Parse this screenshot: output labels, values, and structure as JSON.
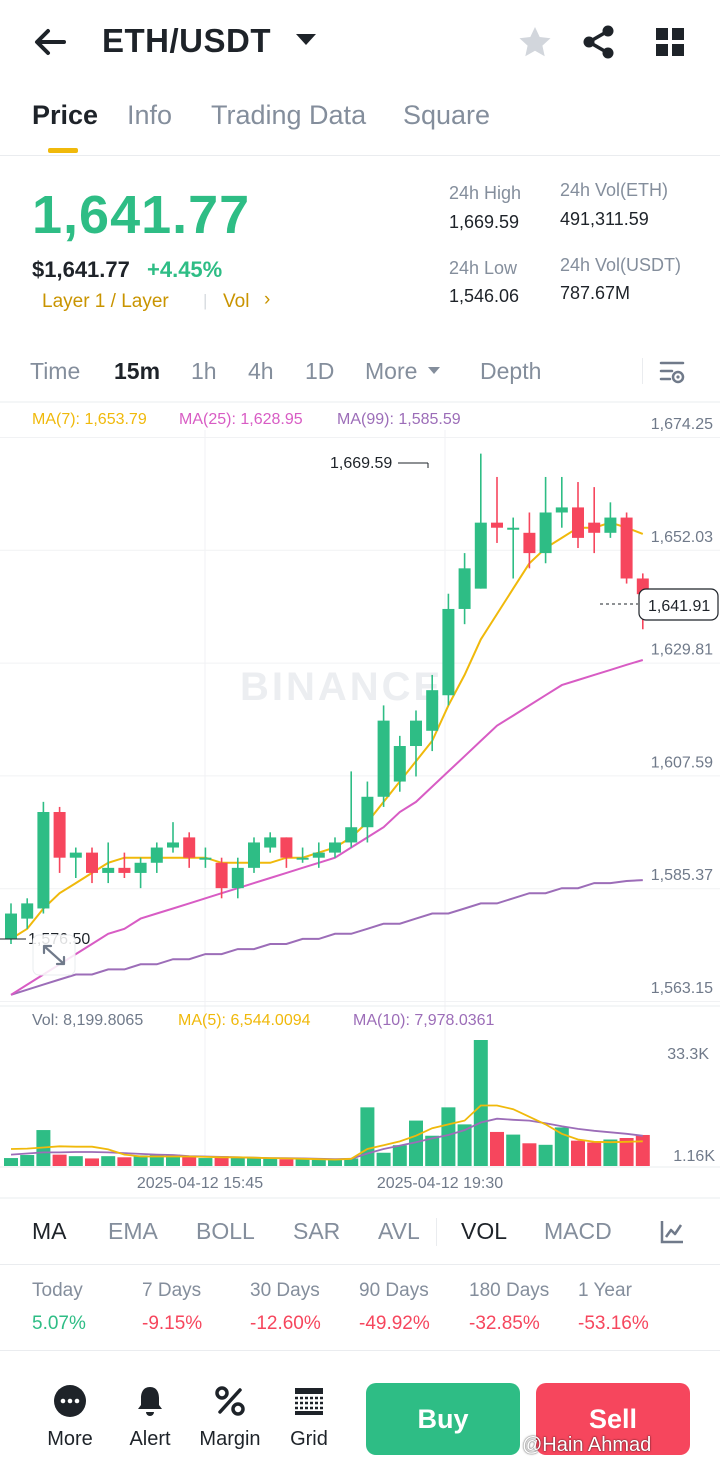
{
  "header": {
    "pair": "ETH/USDT",
    "icons": [
      "back-arrow-icon",
      "caret-down-icon",
      "star-icon",
      "share-icon",
      "grid-icon"
    ]
  },
  "tabs": [
    {
      "label": "Price",
      "active": true
    },
    {
      "label": "Info",
      "active": false
    },
    {
      "label": "Trading Data",
      "active": false
    },
    {
      "label": "Square",
      "active": false
    }
  ],
  "price": {
    "last": "1,641.77",
    "usd": "$1,641.77",
    "change": "+4.45%",
    "tags": {
      "category": "Layer 1 / Layer",
      "vol": "Vol",
      "chevron": "›"
    }
  },
  "stats": {
    "high_label": "24h High",
    "high_value": "1,669.59",
    "low_label": "24h Low",
    "low_value": "1,546.06",
    "vol_base_label": "24h Vol(ETH)",
    "vol_base_value": "491,311.59",
    "vol_quote_label": "24h Vol(USDT)",
    "vol_quote_value": "787.67M"
  },
  "intervals": [
    {
      "label": "Time",
      "active": false
    },
    {
      "label": "15m",
      "active": true
    },
    {
      "label": "1h",
      "active": false
    },
    {
      "label": "4h",
      "active": false
    },
    {
      "label": "1D",
      "active": false
    },
    {
      "label": "More",
      "active": false
    },
    {
      "label": "Depth",
      "active": false
    }
  ],
  "chart": {
    "ma_legend": {
      "ma7": "MA(7): 1,653.79",
      "ma25": "MA(25): 1,628.95",
      "ma99": "MA(99): 1,585.59"
    },
    "vol_legend": {
      "vol": "Vol: 8,199.8065",
      "ma5": "MA(5): 6,544.0094",
      "ma10": "MA(10): 7,978.0361"
    },
    "y_ticks": [
      "1,674.25",
      "1,652.03",
      "1,629.81",
      "1,607.59",
      "1,585.37",
      "1,563.15"
    ],
    "vol_ticks": [
      "33.3K",
      "1.16K"
    ],
    "x_ticks": [
      "2025-04-12 15:45",
      "2025-04-12 19:30"
    ],
    "high_marker": "1,669.59",
    "low_marker": "1,576.50",
    "current_price_tag": "1,641.91",
    "watermark": "BINANCE",
    "colors": {
      "up": "#2ebd85",
      "down": "#f6465d",
      "ma7": "#f0b90b",
      "ma25": "#d85cc4",
      "ma99": "#9c6db8"
    }
  },
  "chart_data": {
    "type": "candlestick",
    "y_range": [
      1563.15,
      1674.25
    ],
    "candles": [
      {
        "o": 1574,
        "h": 1581,
        "l": 1573,
        "c": 1579
      },
      {
        "o": 1578,
        "h": 1582,
        "l": 1576,
        "c": 1581
      },
      {
        "o": 1580,
        "h": 1601,
        "l": 1579,
        "c": 1599
      },
      {
        "o": 1599,
        "h": 1600,
        "l": 1587,
        "c": 1590
      },
      {
        "o": 1590,
        "h": 1592,
        "l": 1586,
        "c": 1591
      },
      {
        "o": 1591,
        "h": 1592,
        "l": 1585,
        "c": 1587
      },
      {
        "o": 1587,
        "h": 1593,
        "l": 1585,
        "c": 1588
      },
      {
        "o": 1588,
        "h": 1591,
        "l": 1586,
        "c": 1587
      },
      {
        "o": 1587,
        "h": 1590,
        "l": 1584,
        "c": 1589
      },
      {
        "o": 1589,
        "h": 1593,
        "l": 1587,
        "c": 1592
      },
      {
        "o": 1592,
        "h": 1597,
        "l": 1591,
        "c": 1593
      },
      {
        "o": 1594,
        "h": 1595,
        "l": 1588,
        "c": 1590
      },
      {
        "o": 1590,
        "h": 1592,
        "l": 1588,
        "c": 1590
      },
      {
        "o": 1589,
        "h": 1590,
        "l": 1582,
        "c": 1584
      },
      {
        "o": 1584,
        "h": 1590,
        "l": 1582,
        "c": 1588
      },
      {
        "o": 1588,
        "h": 1594,
        "l": 1587,
        "c": 1593
      },
      {
        "o": 1592,
        "h": 1595,
        "l": 1591,
        "c": 1594
      },
      {
        "o": 1594,
        "h": 1594,
        "l": 1588,
        "c": 1590
      },
      {
        "o": 1590,
        "h": 1592,
        "l": 1589,
        "c": 1590
      },
      {
        "o": 1590,
        "h": 1593,
        "l": 1588,
        "c": 1591
      },
      {
        "o": 1591,
        "h": 1594,
        "l": 1590,
        "c": 1593
      },
      {
        "o": 1593,
        "h": 1607,
        "l": 1592,
        "c": 1596
      },
      {
        "o": 1596,
        "h": 1605,
        "l": 1593,
        "c": 1602
      },
      {
        "o": 1602,
        "h": 1620,
        "l": 1600,
        "c": 1617
      },
      {
        "o": 1605,
        "h": 1614,
        "l": 1603,
        "c": 1612
      },
      {
        "o": 1612,
        "h": 1619,
        "l": 1606,
        "c": 1617
      },
      {
        "o": 1615,
        "h": 1626,
        "l": 1611,
        "c": 1623
      },
      {
        "o": 1622,
        "h": 1642,
        "l": 1620,
        "c": 1639
      },
      {
        "o": 1639,
        "h": 1650,
        "l": 1636,
        "c": 1647
      },
      {
        "o": 1643,
        "h": 1669.59,
        "l": 1643,
        "c": 1656
      },
      {
        "o": 1656,
        "h": 1665,
        "l": 1652,
        "c": 1655
      },
      {
        "o": 1655,
        "h": 1657,
        "l": 1645,
        "c": 1655
      },
      {
        "o": 1654,
        "h": 1658,
        "l": 1647,
        "c": 1650
      },
      {
        "o": 1650,
        "h": 1665,
        "l": 1648,
        "c": 1658
      },
      {
        "o": 1658,
        "h": 1665,
        "l": 1655,
        "c": 1659
      },
      {
        "o": 1659,
        "h": 1664,
        "l": 1651,
        "c": 1653
      },
      {
        "o": 1656,
        "h": 1663,
        "l": 1650,
        "c": 1654
      },
      {
        "o": 1654,
        "h": 1660,
        "l": 1653,
        "c": 1657
      },
      {
        "o": 1657,
        "h": 1658,
        "l": 1644,
        "c": 1645
      },
      {
        "o": 1645,
        "h": 1646,
        "l": 1635,
        "c": 1641.91
      }
    ],
    "ma7": [
      1574,
      1576,
      1580,
      1583,
      1585,
      1587,
      1589,
      1590,
      1590,
      1590,
      1590,
      1590,
      1590,
      1589,
      1589,
      1589,
      1589,
      1590,
      1590,
      1591,
      1592,
      1594,
      1597,
      1601,
      1605,
      1609,
      1613,
      1620,
      1626,
      1633,
      1638,
      1643,
      1648,
      1651,
      1653,
      1655,
      1655,
      1656,
      1655,
      1653.79
    ],
    "ma25": [
      1563,
      1565,
      1567,
      1569,
      1571,
      1573,
      1575,
      1576,
      1578,
      1579,
      1580,
      1581,
      1582,
      1583,
      1584,
      1585,
      1586,
      1587,
      1588,
      1589,
      1590,
      1592,
      1594,
      1596,
      1599,
      1601,
      1604,
      1607,
      1610,
      1613,
      1616,
      1618,
      1620,
      1622,
      1624,
      1625,
      1626,
      1627,
      1628,
      1628.95
    ],
    "ma99": [
      1563,
      1564,
      1565,
      1566,
      1567,
      1567,
      1568,
      1568,
      1569,
      1569,
      1570,
      1570,
      1571,
      1571,
      1572,
      1572,
      1573,
      1573,
      1574,
      1574,
      1575,
      1575,
      1576,
      1577,
      1577,
      1578,
      1579,
      1579,
      1580,
      1581,
      1581,
      1582,
      1583,
      1583,
      1584,
      1584,
      1585,
      1585,
      1585.4,
      1585.59
    ],
    "volume": [
      2.1,
      2.9,
      9.5,
      3.0,
      2.6,
      2.0,
      2.6,
      2.3,
      2.8,
      3.0,
      3.0,
      2.6,
      2.1,
      2.6,
      2.2,
      2.1,
      2.0,
      1.8,
      1.9,
      1.8,
      1.6,
      2.0,
      15.5,
      3.5,
      5.5,
      12.0,
      8.0,
      15.5,
      11.0,
      33.3,
      9.0,
      8.3,
      6.0,
      5.6,
      10.2,
      6.7,
      6.2,
      7.0,
      7.4,
      8.2
    ],
    "vol_ma5": [
      4.5,
      4.6,
      4.9,
      5.2,
      5.1,
      5.1,
      4.4,
      3.0,
      2.5,
      2.5,
      2.5,
      2.5,
      2.4,
      2.3,
      2.3,
      2.2,
      2.1,
      2.0,
      1.9,
      1.8,
      1.7,
      1.9,
      4.5,
      5.5,
      6.5,
      8.0,
      10.0,
      11.0,
      12.0,
      16.0,
      16.0,
      15.0,
      13.0,
      11.0,
      8.5,
      7.0,
      6.4,
      6.3,
      6.4,
      6.54
    ],
    "vol_ma10": [
      3.0,
      3.3,
      3.6,
      3.6,
      3.7,
      3.7,
      3.6,
      3.4,
      3.2,
      3.0,
      2.9,
      2.6,
      2.5,
      2.4,
      2.3,
      2.2,
      2.1,
      2.1,
      2.0,
      1.9,
      1.8,
      1.9,
      3.3,
      4.5,
      5.4,
      6.3,
      7.3,
      8.2,
      9.5,
      11.5,
      12.5,
      12.2,
      12.0,
      11.3,
      10.5,
      9.8,
      9.3,
      8.9,
      8.5,
      7.98
    ],
    "vol_range": [
      0,
      33.3
    ]
  },
  "indicators": [
    {
      "label": "MA",
      "active": true
    },
    {
      "label": "EMA",
      "active": false
    },
    {
      "label": "BOLL",
      "active": false
    },
    {
      "label": "SAR",
      "active": false
    },
    {
      "label": "AVL",
      "active": false
    },
    {
      "label": "VOL",
      "active": true
    },
    {
      "label": "MACD",
      "active": false
    }
  ],
  "performance": [
    {
      "label": "Today",
      "value": "5.07%",
      "dir": "up"
    },
    {
      "label": "7 Days",
      "value": "-9.15%",
      "dir": "down"
    },
    {
      "label": "30 Days",
      "value": "-12.60%",
      "dir": "down"
    },
    {
      "label": "90 Days",
      "value": "-49.92%",
      "dir": "down"
    },
    {
      "label": "180 Days",
      "value": "-32.85%",
      "dir": "down"
    },
    {
      "label": "1 Year",
      "value": "-53.16%",
      "dir": "down"
    }
  ],
  "bottom_bar": {
    "items": [
      {
        "label": "More",
        "icon": "more-dots-icon"
      },
      {
        "label": "Alert",
        "icon": "bell-icon"
      },
      {
        "label": "Margin",
        "icon": "percent-icon"
      },
      {
        "label": "Grid",
        "icon": "grid-bot-icon"
      }
    ],
    "buy": "Buy",
    "sell": "Sell"
  },
  "watermark": "@Hain Ahmad"
}
